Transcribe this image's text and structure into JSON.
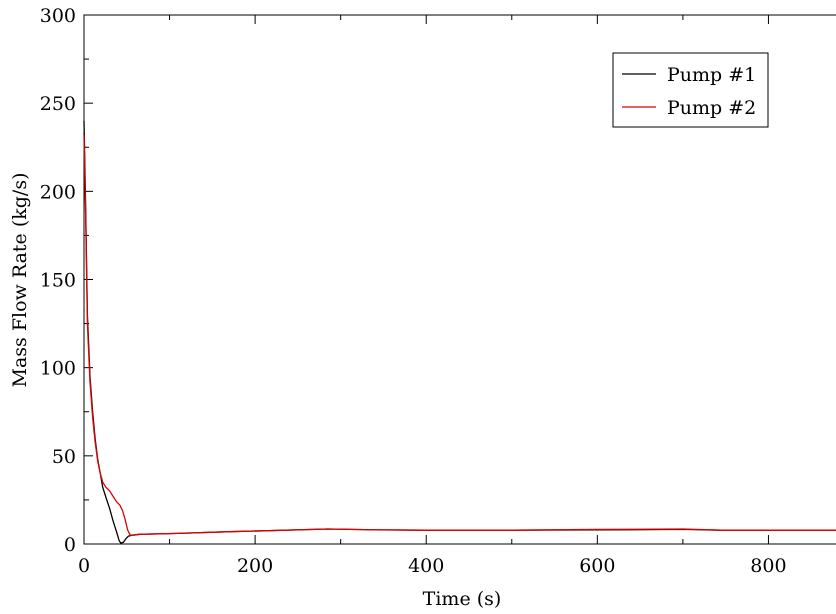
{
  "chart_data": {
    "type": "line",
    "xlabel": "Time (s)",
    "ylabel": "Mass Flow Rate (kg/s)",
    "xlim": [
      0,
      900
    ],
    "ylim": [
      0,
      300
    ],
    "x_ticks": [
      0,
      200,
      400,
      600,
      800
    ],
    "x_tick_labels": [
      "0",
      "200",
      "400",
      "600",
      "800"
    ],
    "y_ticks": [
      0,
      50,
      100,
      150,
      200,
      250,
      300
    ],
    "y_tick_labels": [
      "0",
      "50",
      "100",
      "150",
      "200",
      "250",
      "300"
    ],
    "grid": false,
    "legend_position": "top-right",
    "series": [
      {
        "name": "Pump #1",
        "color": "#000000",
        "points": [
          [
            0,
            240
          ],
          [
            2,
            190
          ],
          [
            4,
            130
          ],
          [
            7,
            95
          ],
          [
            10,
            75
          ],
          [
            13,
            60
          ],
          [
            16,
            48
          ],
          [
            19,
            40
          ],
          [
            22,
            32
          ],
          [
            26,
            26
          ],
          [
            30,
            20
          ],
          [
            34,
            13
          ],
          [
            38,
            7
          ],
          [
            41,
            2
          ],
          [
            43,
            0.5
          ],
          [
            46,
            1
          ],
          [
            49,
            3
          ],
          [
            52,
            4.5
          ],
          [
            56,
            5
          ],
          [
            65,
            5.5
          ],
          [
            110,
            6
          ],
          [
            170,
            7
          ],
          [
            210,
            7.5
          ],
          [
            285,
            8.5
          ],
          [
            345,
            8
          ],
          [
            400,
            7.8
          ],
          [
            500,
            7.8
          ],
          [
            600,
            8
          ],
          [
            700,
            8.3
          ],
          [
            745,
            7.8
          ],
          [
            900,
            7.8
          ]
        ]
      },
      {
        "name": "Pump #2",
        "color": "#dd0000",
        "points": [
          [
            0,
            232
          ],
          [
            2,
            185
          ],
          [
            4,
            125
          ],
          [
            7,
            92
          ],
          [
            10,
            72
          ],
          [
            13,
            58
          ],
          [
            16,
            47
          ],
          [
            19,
            40
          ],
          [
            22,
            35
          ],
          [
            26,
            32
          ],
          [
            30,
            30
          ],
          [
            34,
            27
          ],
          [
            38,
            24
          ],
          [
            42,
            22
          ],
          [
            45,
            19
          ],
          [
            48,
            14
          ],
          [
            51,
            8
          ],
          [
            54,
            5
          ],
          [
            58,
            5
          ],
          [
            65,
            5.5
          ],
          [
            110,
            6
          ],
          [
            170,
            7
          ],
          [
            210,
            7.5
          ],
          [
            285,
            8.5
          ],
          [
            345,
            8
          ],
          [
            400,
            7.8
          ],
          [
            500,
            7.8
          ],
          [
            600,
            8.3
          ],
          [
            700,
            8.5
          ],
          [
            745,
            7.8
          ],
          [
            900,
            7.8
          ]
        ]
      }
    ]
  }
}
